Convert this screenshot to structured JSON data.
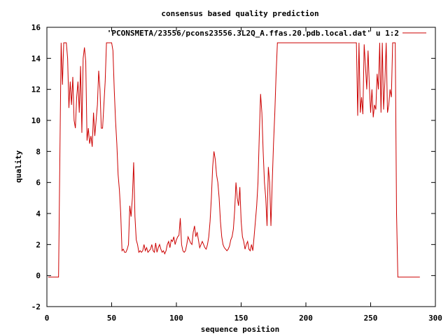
{
  "chart_data": {
    "type": "line",
    "title": "consensus based quality prediction",
    "xlabel": "sequence position",
    "ylabel": "quality",
    "xlim": [
      0,
      300
    ],
    "ylim": [
      -2,
      16
    ],
    "x_ticks": [
      0,
      50,
      100,
      150,
      200,
      250,
      300
    ],
    "y_ticks": [
      -2,
      0,
      2,
      4,
      6,
      8,
      10,
      12,
      14,
      16
    ],
    "grid": false,
    "legend_position": "top-right",
    "series": [
      {
        "name": "'PCONSMETA/23556/pcons23556.3L2Q_A.ffas.20.pdb.local.dat' u 1:2",
        "color": "#cc0000",
        "points": [
          [
            1,
            -0.1
          ],
          [
            9,
            -0.1
          ],
          [
            10,
            7.5
          ],
          [
            11,
            15
          ],
          [
            12,
            12.3
          ],
          [
            13,
            15
          ],
          [
            14,
            15
          ],
          [
            15,
            15
          ],
          [
            16,
            14
          ],
          [
            17,
            10.8
          ],
          [
            18,
            12.5
          ],
          [
            19,
            11
          ],
          [
            20,
            12.8
          ],
          [
            21,
            10
          ],
          [
            22,
            9.5
          ],
          [
            23,
            11.5
          ],
          [
            24,
            12.5
          ],
          [
            25,
            10.5
          ],
          [
            26,
            13.5
          ],
          [
            27,
            9.2
          ],
          [
            28,
            14
          ],
          [
            29,
            14.7
          ],
          [
            30,
            13.8
          ],
          [
            31,
            8.7
          ],
          [
            32,
            9.5
          ],
          [
            33,
            8.5
          ],
          [
            34,
            9
          ],
          [
            35,
            8.3
          ],
          [
            36,
            10.5
          ],
          [
            37,
            9
          ],
          [
            38,
            10
          ],
          [
            39,
            11
          ],
          [
            40,
            13.2
          ],
          [
            41,
            12
          ],
          [
            42,
            9.5
          ],
          [
            43,
            9.5
          ],
          [
            44,
            11
          ],
          [
            45,
            12.5
          ],
          [
            46,
            15
          ],
          [
            47,
            15
          ],
          [
            48,
            15
          ],
          [
            49,
            15
          ],
          [
            50,
            15
          ],
          [
            51,
            14.5
          ],
          [
            52,
            12
          ],
          [
            53,
            10
          ],
          [
            54,
            8.5
          ],
          [
            55,
            6.5
          ],
          [
            56,
            5.5
          ],
          [
            57,
            4
          ],
          [
            58,
            1.6
          ],
          [
            59,
            1.7
          ],
          [
            60,
            1.5
          ],
          [
            61,
            1.5
          ],
          [
            62,
            1.7
          ],
          [
            63,
            2
          ],
          [
            64,
            4.5
          ],
          [
            65,
            3.8
          ],
          [
            66,
            5
          ],
          [
            67,
            7.3
          ],
          [
            68,
            3.8
          ],
          [
            69,
            2.3
          ],
          [
            70,
            2
          ],
          [
            71,
            1.5
          ],
          [
            72,
            1.6
          ],
          [
            73,
            1.5
          ],
          [
            74,
            1.6
          ],
          [
            75,
            2
          ],
          [
            76,
            1.6
          ],
          [
            77,
            1.8
          ],
          [
            78,
            1.5
          ],
          [
            79,
            1.6
          ],
          [
            80,
            1.7
          ],
          [
            81,
            2
          ],
          [
            82,
            1.6
          ],
          [
            83,
            1.5
          ],
          [
            84,
            2.1
          ],
          [
            85,
            1.5
          ],
          [
            86,
            1.8
          ],
          [
            87,
            2
          ],
          [
            88,
            1.7
          ],
          [
            89,
            1.5
          ],
          [
            90,
            1.6
          ],
          [
            91,
            1.4
          ],
          [
            92,
            1.6
          ],
          [
            93,
            2
          ],
          [
            94,
            2.2
          ],
          [
            95,
            1.8
          ],
          [
            96,
            2.3
          ],
          [
            97,
            2.2
          ],
          [
            98,
            2.5
          ],
          [
            99,
            2
          ],
          [
            100,
            2.3
          ],
          [
            101,
            2.5
          ],
          [
            102,
            2.6
          ],
          [
            103,
            3.7
          ],
          [
            104,
            2
          ],
          [
            105,
            1.6
          ],
          [
            106,
            1.5
          ],
          [
            107,
            1.6
          ],
          [
            108,
            2
          ],
          [
            109,
            2.5
          ],
          [
            110,
            2.3
          ],
          [
            111,
            2.1
          ],
          [
            112,
            2
          ],
          [
            113,
            2.8
          ],
          [
            114,
            3.2
          ],
          [
            115,
            2.5
          ],
          [
            116,
            2.8
          ],
          [
            117,
            2.3
          ],
          [
            118,
            1.8
          ],
          [
            119,
            2
          ],
          [
            120,
            2.2
          ],
          [
            121,
            2
          ],
          [
            122,
            1.8
          ],
          [
            123,
            1.7
          ],
          [
            124,
            2
          ],
          [
            125,
            2.5
          ],
          [
            126,
            3.5
          ],
          [
            127,
            5
          ],
          [
            128,
            7
          ],
          [
            129,
            8
          ],
          [
            130,
            7.5
          ],
          [
            131,
            6.5
          ],
          [
            132,
            6
          ],
          [
            133,
            5
          ],
          [
            134,
            3.5
          ],
          [
            135,
            2.5
          ],
          [
            136,
            2
          ],
          [
            137,
            1.8
          ],
          [
            138,
            1.7
          ],
          [
            139,
            1.6
          ],
          [
            140,
            1.7
          ],
          [
            141,
            1.9
          ],
          [
            142,
            2.3
          ],
          [
            143,
            2.5
          ],
          [
            144,
            3
          ],
          [
            145,
            4.2
          ],
          [
            146,
            6
          ],
          [
            147,
            5
          ],
          [
            148,
            4.5
          ],
          [
            149,
            5.7
          ],
          [
            150,
            3.5
          ],
          [
            151,
            2.5
          ],
          [
            152,
            2.2
          ],
          [
            153,
            1.7
          ],
          [
            154,
            2
          ],
          [
            155,
            2.2
          ],
          [
            156,
            1.7
          ],
          [
            157,
            1.6
          ],
          [
            158,
            2
          ],
          [
            159,
            1.6
          ],
          [
            160,
            2.5
          ],
          [
            161,
            3.5
          ],
          [
            162,
            4.5
          ],
          [
            163,
            6
          ],
          [
            164,
            9
          ],
          [
            165,
            11.7
          ],
          [
            166,
            10.5
          ],
          [
            167,
            8
          ],
          [
            168,
            6
          ],
          [
            169,
            5
          ],
          [
            170,
            3.2
          ],
          [
            171,
            7
          ],
          [
            172,
            6
          ],
          [
            173,
            3.2
          ],
          [
            174,
            6
          ],
          [
            175,
            8.5
          ],
          [
            176,
            10.5
          ],
          [
            177,
            13
          ],
          [
            178,
            15
          ],
          [
            179,
            15
          ],
          [
            180,
            15
          ],
          [
            181,
            15
          ],
          [
            182,
            15
          ],
          [
            183,
            15
          ],
          [
            184,
            15
          ],
          [
            185,
            15
          ],
          [
            186,
            15
          ],
          [
            187,
            15
          ],
          [
            188,
            15
          ],
          [
            189,
            15
          ],
          [
            190,
            15
          ],
          [
            191,
            15
          ],
          [
            192,
            15
          ],
          [
            193,
            15
          ],
          [
            194,
            15
          ],
          [
            195,
            15
          ],
          [
            196,
            15
          ],
          [
            197,
            15
          ],
          [
            198,
            15
          ],
          [
            199,
            15
          ],
          [
            200,
            15
          ],
          [
            201,
            15
          ],
          [
            202,
            15
          ],
          [
            203,
            15
          ],
          [
            204,
            15
          ],
          [
            205,
            15
          ],
          [
            206,
            15
          ],
          [
            207,
            15
          ],
          [
            208,
            15
          ],
          [
            209,
            15
          ],
          [
            210,
            15
          ],
          [
            211,
            15
          ],
          [
            212,
            15
          ],
          [
            213,
            15
          ],
          [
            214,
            15
          ],
          [
            215,
            15
          ],
          [
            216,
            15
          ],
          [
            217,
            15
          ],
          [
            218,
            15
          ],
          [
            219,
            15
          ],
          [
            220,
            15
          ],
          [
            221,
            15
          ],
          [
            222,
            15
          ],
          [
            223,
            15
          ],
          [
            224,
            15
          ],
          [
            225,
            15
          ],
          [
            226,
            15
          ],
          [
            227,
            15
          ],
          [
            228,
            15
          ],
          [
            229,
            15
          ],
          [
            230,
            15
          ],
          [
            231,
            15
          ],
          [
            232,
            15
          ],
          [
            233,
            15
          ],
          [
            234,
            15
          ],
          [
            235,
            15
          ],
          [
            236,
            15
          ],
          [
            237,
            15
          ],
          [
            238,
            15
          ],
          [
            239,
            15
          ],
          [
            240,
            10.3
          ],
          [
            241,
            15
          ],
          [
            242,
            10.5
          ],
          [
            243,
            11.5
          ],
          [
            244,
            10.4
          ],
          [
            245,
            14.9
          ],
          [
            246,
            13.5
          ],
          [
            247,
            12
          ],
          [
            248,
            14.5
          ],
          [
            249,
            12.2
          ],
          [
            250,
            10.5
          ],
          [
            251,
            12
          ],
          [
            252,
            10.2
          ],
          [
            253,
            11
          ],
          [
            254,
            10.7
          ],
          [
            255,
            13
          ],
          [
            256,
            12
          ],
          [
            257,
            15
          ],
          [
            258,
            10.5
          ],
          [
            259,
            15
          ],
          [
            260,
            10.7
          ],
          [
            261,
            12.5
          ],
          [
            262,
            15
          ],
          [
            263,
            10.5
          ],
          [
            264,
            11
          ],
          [
            265,
            12
          ],
          [
            266,
            11.5
          ],
          [
            267,
            15
          ],
          [
            268,
            15
          ],
          [
            269,
            15
          ],
          [
            270,
            4
          ],
          [
            271,
            -0.1
          ],
          [
            288,
            -0.1
          ]
        ]
      }
    ]
  }
}
